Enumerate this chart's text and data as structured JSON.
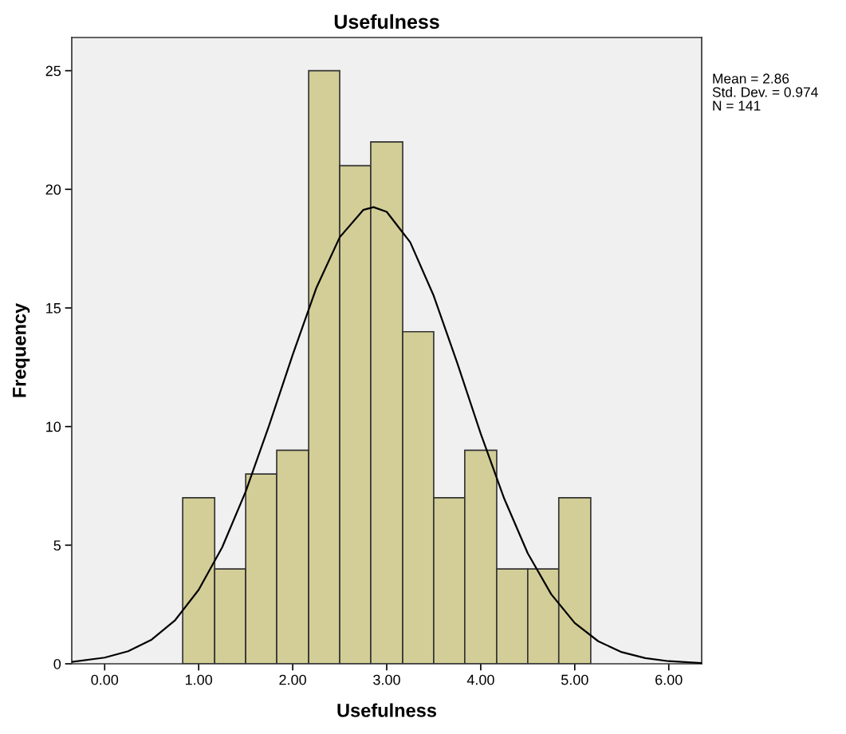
{
  "chart_data": {
    "type": "histogram",
    "title": "Usefulness",
    "xlabel": "Usefulness",
    "ylabel": "Frequency",
    "series": [
      {
        "color": "#d3ce97",
        "bins": [
          0.83,
          1.17,
          1.5,
          1.83,
          2.17,
          2.5,
          2.83,
          3.17,
          3.5,
          3.83,
          4.17,
          4.5,
          4.83,
          5.17
        ],
        "values": [
          7,
          4,
          8,
          9,
          25,
          21,
          22,
          14,
          7,
          9,
          4,
          4,
          7
        ]
      },
      {
        "type": "line",
        "color": "#000000",
        "x": [
          -0.35,
          0,
          0.25,
          0.5,
          0.75,
          1.0,
          1.25,
          1.5,
          1.75,
          2.0,
          2.25,
          2.5,
          2.75,
          2.86,
          3.0,
          3.25,
          3.5,
          3.75,
          4.0,
          4.25,
          4.5,
          4.75,
          5.0,
          5.25,
          5.5,
          5.75,
          6.0,
          6.35
        ],
        "values": [
          0.08,
          0.26,
          0.53,
          1.02,
          1.84,
          3.12,
          4.91,
          7.26,
          10.06,
          13.03,
          15.83,
          17.98,
          19.13,
          19.25,
          19.05,
          17.77,
          15.51,
          12.68,
          9.7,
          6.96,
          4.66,
          2.93,
          1.72,
          0.95,
          0.49,
          0.24,
          0.11,
          0.03
        ]
      }
    ],
    "xlim": [
      -0.35,
      6.35
    ],
    "ylim": [
      0,
      26.4
    ],
    "xticks": [
      {
        "value": 0,
        "label": "0.00"
      },
      {
        "value": 1,
        "label": "1.00"
      },
      {
        "value": 2,
        "label": "2.00"
      },
      {
        "value": 3,
        "label": "3.00"
      },
      {
        "value": 4,
        "label": "4.00"
      },
      {
        "value": 5,
        "label": "5.00"
      },
      {
        "value": 6,
        "label": "6.00"
      }
    ],
    "yticks": [
      0,
      5,
      10,
      15,
      20,
      25
    ],
    "grid": false,
    "legend": false,
    "annotations": [
      "Mean = 2.86",
      "Std. Dev. = 0.974",
      "N = 141"
    ]
  }
}
